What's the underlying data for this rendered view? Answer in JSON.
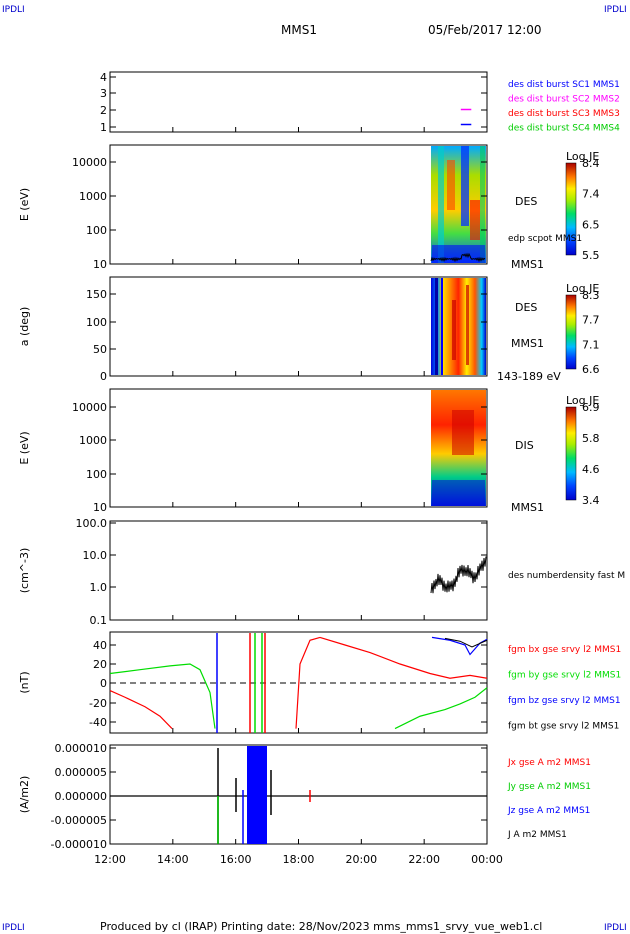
{
  "header": {
    "corner_tl": "IPDLI",
    "corner_tr": "IPDLI",
    "mission": "MMS1",
    "datetime": "05/Feb/2017 12:00"
  },
  "footer": {
    "text": "Produced by cl (IRAP)   Printing date: 28/Nov/2023   mms_mms1_srvy_vue_web1.cl",
    "corner_bl": "IPDLI",
    "corner_br": "IPDLI"
  },
  "chart_data": [
    {
      "type": "line",
      "panel": "burst-intervals",
      "ylim": [
        0.5,
        4.5
      ],
      "yticks": [
        "4",
        "3",
        "2",
        "1"
      ],
      "series": [
        {
          "name": "des dist burst SC1 MMS1",
          "color": "#0000ff",
          "y": 1,
          "x": [
            "23:10",
            "23:30"
          ]
        },
        {
          "name": "des dist burst SC2 MMS2",
          "color": "#ff00ff",
          "y": 2,
          "x": [
            "23:10",
            "23:30"
          ]
        },
        {
          "name": "des dist burst SC3 MMS3",
          "color": "#ff0000"
        },
        {
          "name": "des dist burst SC4 MMS4",
          "color": "#00cc00"
        }
      ]
    },
    {
      "type": "heatmap",
      "panel": "des-energy",
      "ylabel": "E (eV)",
      "yscale": "log",
      "yticks": [
        "10000",
        "1000",
        "100",
        "10"
      ],
      "label": "DES",
      "overlay": "edp scpot MMS1",
      "sc_label": "MMS1",
      "colorbar": {
        "title": "Log JE",
        "ticks": [
          "8.4",
          "7.4",
          "6.5",
          "5.5"
        ]
      },
      "data_start": "22:10"
    },
    {
      "type": "heatmap",
      "panel": "des-pitch",
      "ylabel": "a (deg)",
      "yticks": [
        "150",
        "100",
        "50",
        "0"
      ],
      "label": "DES",
      "sc_label": "MMS1",
      "range_label": "143-189 eV",
      "colorbar": {
        "title": "Log JE",
        "ticks": [
          "8.3",
          "7.7",
          "7.1",
          "6.6"
        ]
      },
      "data_start": "22:10"
    },
    {
      "type": "heatmap",
      "panel": "dis-energy",
      "ylabel": "E (eV)",
      "yscale": "log",
      "yticks": [
        "10000",
        "1000",
        "100",
        "10"
      ],
      "label": "DIS",
      "sc_label": "MMS1",
      "colorbar": {
        "title": "Log JE",
        "ticks": [
          "6.9",
          "5.8",
          "4.6",
          "3.4"
        ]
      },
      "data_start": "22:10"
    },
    {
      "type": "line",
      "panel": "density",
      "ylabel": "(cm^-3)",
      "yscale": "log",
      "yticks": [
        "100.0",
        "10.0",
        "1.0",
        "0.1"
      ],
      "series": [
        {
          "name": "des numberdensity fast M",
          "color": "#000000"
        }
      ],
      "data_start": "22:10"
    },
    {
      "type": "line",
      "panel": "magnetic-field",
      "ylabel": "(nT)",
      "ylim": [
        -48,
        48
      ],
      "yticks": [
        "40",
        "20",
        "0",
        "-20",
        "-40"
      ],
      "series": [
        {
          "name": "fgm bx gse srvy l2 MMS1",
          "color": "#ff0000"
        },
        {
          "name": "fgm by gse srvy l2 MMS1",
          "color": "#00dd00"
        },
        {
          "name": "fgm bz gse srvy l2 MMS1",
          "color": "#0000ff"
        },
        {
          "name": "fgm bt gse srvy l2 MMS1",
          "color": "#000000"
        }
      ]
    },
    {
      "type": "line",
      "panel": "current-density",
      "ylabel": "(A/m2)",
      "ylim": [
        -0.0001,
        0.0001
      ],
      "yticks": [
        "0.000010",
        "0.000005",
        "0.000000",
        "-0.000005",
        "-0.000010"
      ],
      "series": [
        {
          "name": "Jx gse A m2 MMS1",
          "color": "#ff0000"
        },
        {
          "name": "Jy gse A m2 MMS1",
          "color": "#00cc00"
        },
        {
          "name": "Jz gse A m2 MMS1",
          "color": "#0000ff"
        },
        {
          "name": "J A m2 MMS1",
          "color": "#000000"
        }
      ],
      "xticks": [
        "12:00",
        "14:00",
        "16:00",
        "18:00",
        "20:00",
        "22:00",
        "00:00"
      ]
    }
  ]
}
